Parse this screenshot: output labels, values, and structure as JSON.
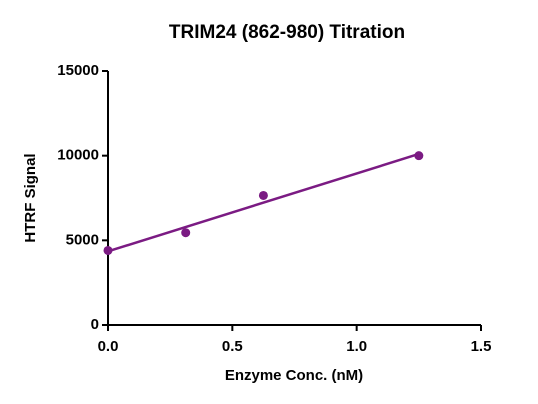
{
  "chart_data": {
    "type": "scatter",
    "title": "TRIM24 (862-980) Titration",
    "x_label": "Enzyme Conc. (nM)",
    "y_label": "HTRF Signal",
    "series": [
      {
        "mode": "markers",
        "color": "#7b1b83",
        "x": [
          0,
          0.3125,
          0.625,
          1.25
        ],
        "values": [
          4400,
          5450,
          7650,
          10000
        ]
      },
      {
        "mode": "line",
        "color": "#7b1b83",
        "x": [
          0,
          1.25
        ],
        "values": [
          4350,
          10100
        ]
      }
    ],
    "xlim": [
      0,
      1.5
    ],
    "xticks": [
      {
        "value": 0,
        "label": "0.0"
      },
      0.5,
      {
        "value": 1,
        "label": "1.0"
      },
      1.5
    ],
    "ylim": [
      0,
      15000
    ],
    "yticks": [
      0,
      5000,
      10000,
      15000
    ]
  }
}
